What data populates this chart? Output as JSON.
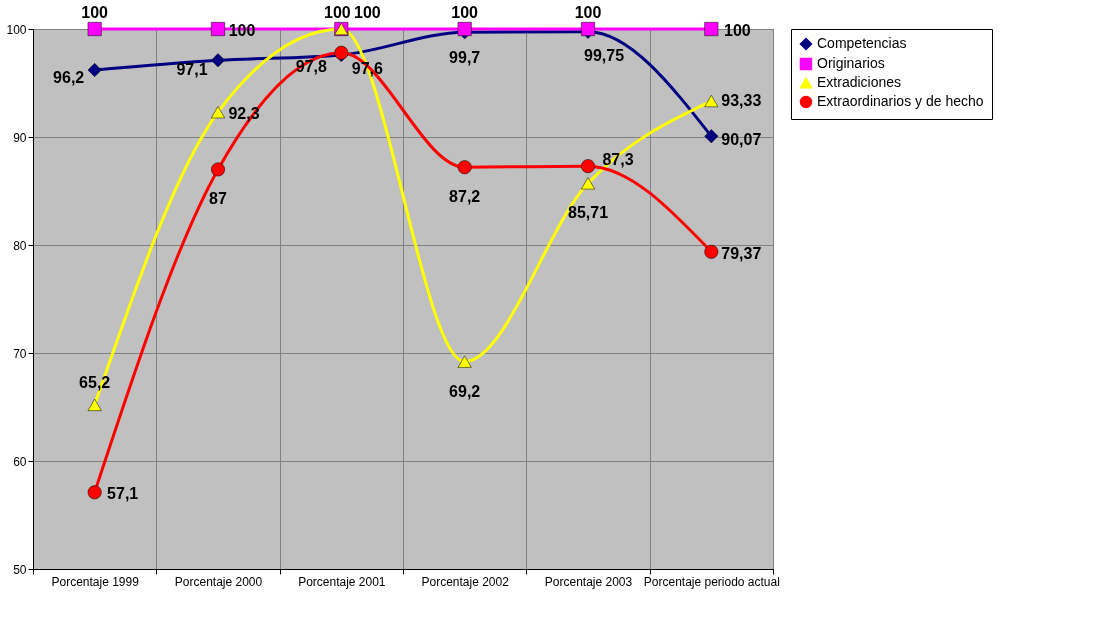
{
  "chart_data": {
    "type": "line",
    "categories": [
      "Porcentaje 1999",
      "Porcentaje 2000",
      "Porcentaje 2001",
      "Porcentaje 2002",
      "Porcentaje 2003",
      "Porcentaje periodo actual"
    ],
    "series": [
      {
        "name": "Competencias",
        "color": "#000080",
        "marker": "diamond",
        "values": [
          96.2,
          97.1,
          97.6,
          99.7,
          99.75,
          90.07
        ],
        "value_labels": [
          "96,2",
          "97,1",
          "97,6",
          "99,7",
          "99,75",
          "90,07"
        ]
      },
      {
        "name": "Originarios",
        "color": "#ff00ff",
        "marker": "square",
        "values": [
          100,
          100,
          100,
          100,
          100,
          100
        ],
        "value_labels": [
          "100",
          "100",
          "100",
          "100",
          "100",
          "100"
        ]
      },
      {
        "name": "Extradiciones",
        "color": "#ffff00",
        "marker": "triangle",
        "values": [
          65.2,
          92.3,
          100,
          69.2,
          85.71,
          93.33
        ],
        "value_labels": [
          "65,2",
          "92,3",
          "100",
          "69,2",
          "85,71",
          "93,33"
        ]
      },
      {
        "name": "Extraordinarios y de hecho",
        "color": "#ff0000",
        "marker": "circle",
        "values": [
          57.1,
          87,
          97.8,
          87.2,
          87.3,
          79.37
        ],
        "value_labels": [
          "57,1",
          "87",
          "97,8",
          "87,2",
          "87,3",
          "79,37"
        ]
      }
    ],
    "ylim": [
      50,
      100
    ],
    "yticks": [
      50,
      60,
      70,
      80,
      90,
      100
    ],
    "grid": true,
    "legend": "right"
  }
}
